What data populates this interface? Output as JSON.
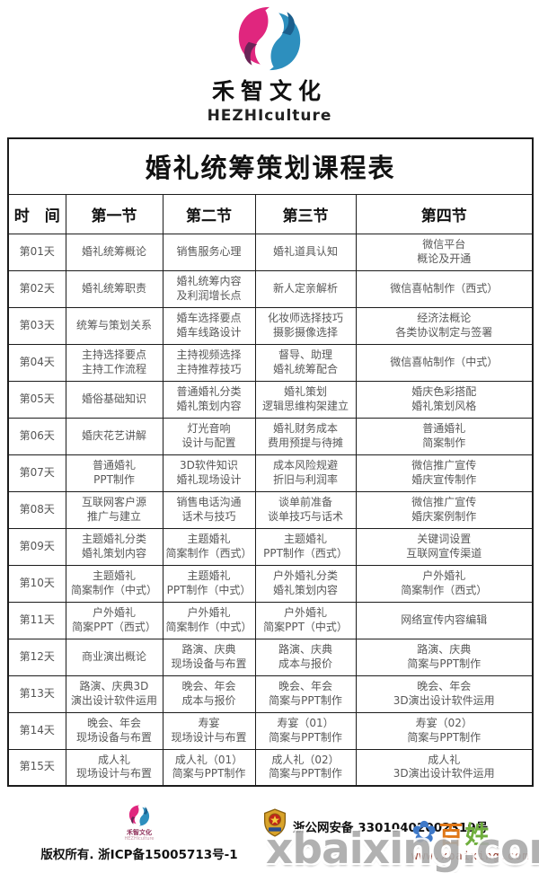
{
  "brand": {
    "name_cn": "禾智文化",
    "name_en": "HEZHIculture"
  },
  "table": {
    "title": "婚礼统筹策划课程表",
    "columns": [
      "时　间",
      "第一节",
      "第二节",
      "第三节",
      "第四节"
    ],
    "rows": [
      {
        "day": "第01天",
        "cells": [
          [
            "婚礼统筹概论"
          ],
          [
            "销售服务心理"
          ],
          [
            "婚礼道具认知"
          ],
          [
            "微信平台",
            "概论及开通"
          ]
        ]
      },
      {
        "day": "第02天",
        "cells": [
          [
            "婚礼统筹职责"
          ],
          [
            "婚礼统筹内容",
            "及利润增长点"
          ],
          [
            "新人定亲解析"
          ],
          [
            "微信喜帖制作（西式）"
          ]
        ]
      },
      {
        "day": "第03天",
        "cells": [
          [
            "统筹与策划关系"
          ],
          [
            "婚车选择要点",
            "婚车线路设计"
          ],
          [
            "化妆师选择技巧",
            "摄影摄像选择"
          ],
          [
            "经济法概论",
            "各类协议制定与签署"
          ]
        ]
      },
      {
        "day": "第04天",
        "cells": [
          [
            "主持选择要点",
            "主持工作流程"
          ],
          [
            "主持视频选择",
            "主持推荐技巧"
          ],
          [
            "督导、助理",
            "婚礼统筹配合"
          ],
          [
            "微信喜帖制作（中式）"
          ]
        ]
      },
      {
        "day": "第05天",
        "cells": [
          [
            "婚俗基础知识"
          ],
          [
            "普通婚礼分类",
            "婚礼策划内容"
          ],
          [
            "婚礼策划",
            "逻辑思维构架建立"
          ],
          [
            "婚庆色彩搭配",
            "婚礼策划风格"
          ]
        ]
      },
      {
        "day": "第06天",
        "cells": [
          [
            "婚庆花艺讲解"
          ],
          [
            "灯光音响",
            "设计与配置"
          ],
          [
            "婚礼财务成本",
            "费用预提与待摊"
          ],
          [
            "普通婚礼",
            "简案制作"
          ]
        ]
      },
      {
        "day": "第07天",
        "cells": [
          [
            "普通婚礼",
            "PPT制作"
          ],
          [
            "3D软件知识",
            "婚礼现场设计"
          ],
          [
            "成本风险规避",
            "折旧与利润率"
          ],
          [
            "微信推广宣传",
            "婚庆宣传制作"
          ]
        ]
      },
      {
        "day": "第08天",
        "cells": [
          [
            "互联网客户源",
            "推广与建立"
          ],
          [
            "销售电话沟通",
            "话术与技巧"
          ],
          [
            "谈单前准备",
            "谈单技巧与话术"
          ],
          [
            "微信推广宣传",
            "婚庆案例制作"
          ]
        ]
      },
      {
        "day": "第09天",
        "cells": [
          [
            "主题婚礼分类",
            "婚礼策划内容"
          ],
          [
            "主题婚礼",
            "简案制作（西式）"
          ],
          [
            "主题婚礼",
            "PPT制作（西式）"
          ],
          [
            "关键词设置",
            "互联网宣传渠道"
          ]
        ]
      },
      {
        "day": "第10天",
        "cells": [
          [
            "主题婚礼",
            "简案制作（中式）"
          ],
          [
            "主题婚礼",
            "PPT制作（中式）"
          ],
          [
            "户外婚礼分类",
            "婚礼策划内容"
          ],
          [
            "户外婚礼",
            "简案制作（西式）"
          ]
        ]
      },
      {
        "day": "第11天",
        "cells": [
          [
            "户外婚礼",
            "简案PPT（西式）"
          ],
          [
            "户外婚礼",
            "简案制作（中式）"
          ],
          [
            "户外婚礼",
            "简案PPT（中式）"
          ],
          [
            "网络宣传内容编辑"
          ]
        ]
      },
      {
        "day": "第12天",
        "cells": [
          [
            "商业演出概论"
          ],
          [
            "路演、庆典",
            "现场设备与布置"
          ],
          [
            "路演、庆典",
            "成本与报价"
          ],
          [
            "路演、庆典",
            "简案与PPT制作"
          ]
        ]
      },
      {
        "day": "第13天",
        "cells": [
          [
            "路演、庆典3D",
            "演出设计软件运用"
          ],
          [
            "晚会、年会",
            "成本与报价"
          ],
          [
            "晚会、年会",
            "简案与PPT制作"
          ],
          [
            "晚会、年会",
            "3D演出设计软件运用"
          ]
        ]
      },
      {
        "day": "第14天",
        "cells": [
          [
            "晚会、年会",
            "现场设备与布置"
          ],
          [
            "寿宴",
            "现场设计与布置"
          ],
          [
            "寿宴（01）",
            "简案与PPT制作"
          ],
          [
            "寿宴（02）",
            "简案与PPT制作"
          ]
        ]
      },
      {
        "day": "第15天",
        "cells": [
          [
            "成人礼",
            "现场设计与布置"
          ],
          [
            "成人礼（01）",
            "简案与PPT制作"
          ],
          [
            "成人礼（02）",
            "简案与PPT制作"
          ],
          [
            "成人礼",
            "3D演出设计软件运用"
          ]
        ]
      }
    ]
  },
  "footer": {
    "brand_cn": "禾智文化",
    "brand_en": "HEZHIculture",
    "copyright": "版权所有. 浙ICP备15005713号-1",
    "police_text": "浙公网安备 33010402002319号",
    "mascot_bai": "百",
    "mascot_xing": "姓",
    "site_url": "www.xbaixing.com",
    "watermark": "xbaixing.com"
  },
  "colors": {
    "logo_pink": "#e0267e",
    "logo_purple": "#6b2457",
    "logo_blue": "#2d8fbe",
    "logo_dark_blue": "#1b5e8c",
    "border": "#1c1c1c",
    "cell_text": "#585858",
    "url_red": "#8a2f20",
    "watermark_gray": "#a9a9a9"
  }
}
